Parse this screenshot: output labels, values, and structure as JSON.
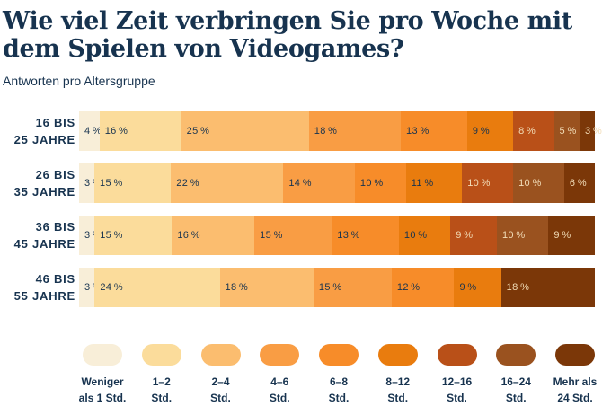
{
  "title": {
    "line1": "Wie viel Zeit verbringen Sie pro Woche mit",
    "line2": "dem Spielen von Videogames?"
  },
  "subtitle": "Antworten pro Altersgruppe",
  "colors": {
    "background": "#FFFFFF",
    "navy_text": "#17334F",
    "light_segment_text": "#F2DDB8",
    "palette": [
      "#F8EED8",
      "#FBDC9B",
      "#FBBD6F",
      "#F99D44",
      "#F78C29",
      "#E97C0E",
      "#B95018",
      "#9A521F",
      "#7B3708"
    ]
  },
  "chart_data": {
    "type": "bar",
    "stacked": true,
    "orientation": "horizontal",
    "unit": "%",
    "title": "Wie viel Zeit verbringen Sie pro Woche mit dem Spielen von Videogames?",
    "subtitle": "Antworten pro Altersgruppe",
    "categories": [
      "Weniger als 1 Std.",
      "1–2 Std.",
      "2–4 Std.",
      "4–6 Std.",
      "6–8 Std.",
      "8–12 Std.",
      "12–16 Std.",
      "16–24 Std.",
      "Mehr als 24 Std."
    ],
    "legend_position": "bottom",
    "groups": [
      {
        "label_line1": "16 BIS",
        "label_line2": "25 JAHRE",
        "values": [
          4,
          16,
          25,
          18,
          13,
          9,
          8,
          5,
          3
        ],
        "category_indices": [
          0,
          1,
          2,
          3,
          4,
          5,
          6,
          7,
          8
        ]
      },
      {
        "label_line1": "26 BIS",
        "label_line2": "35 JAHRE",
        "values": [
          3,
          15,
          22,
          14,
          10,
          11,
          10,
          10,
          6
        ],
        "category_indices": [
          0,
          1,
          2,
          3,
          4,
          5,
          6,
          7,
          8
        ]
      },
      {
        "label_line1": "36 BIS",
        "label_line2": "45 JAHRE",
        "values": [
          3,
          15,
          16,
          15,
          13,
          10,
          9,
          10,
          9
        ],
        "category_indices": [
          0,
          1,
          2,
          3,
          4,
          5,
          6,
          7,
          8
        ]
      },
      {
        "label_line1": "46 BIS",
        "label_line2": "55 JAHRE",
        "values": [
          3,
          24,
          18,
          15,
          12,
          9,
          18
        ],
        "category_indices": [
          0,
          1,
          2,
          3,
          4,
          5,
          8
        ]
      }
    ]
  },
  "legend": {
    "items": [
      {
        "line1": "Weniger",
        "line2": "als 1 Std."
      },
      {
        "line1": "1–2",
        "line2": "Std."
      },
      {
        "line1": "2–4",
        "line2": "Std."
      },
      {
        "line1": "4–6",
        "line2": "Std."
      },
      {
        "line1": "6–8",
        "line2": "Std."
      },
      {
        "line1": "8–12",
        "line2": "Std."
      },
      {
        "line1": "12–16",
        "line2": "Std."
      },
      {
        "line1": "16–24",
        "line2": "Std."
      },
      {
        "line1": "Mehr als",
        "line2": "24 Std."
      }
    ]
  }
}
